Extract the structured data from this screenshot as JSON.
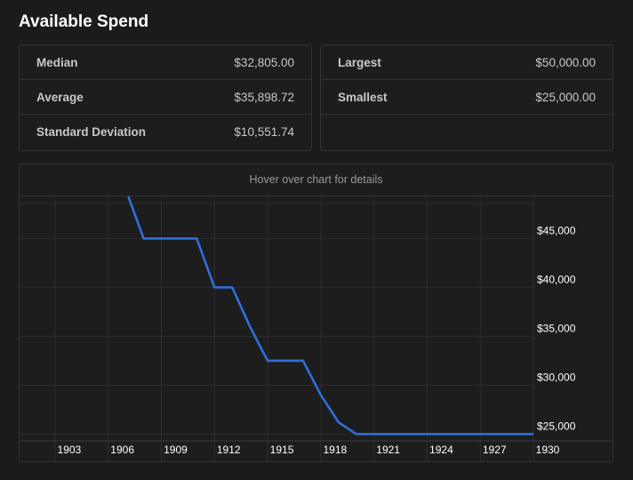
{
  "title": "Available Spend",
  "stats_left": [
    {
      "label": "Median",
      "value": "$32,805.00"
    },
    {
      "label": "Average",
      "value": "$35,898.72"
    },
    {
      "label": "Standard Deviation",
      "value": "$10,551.74"
    }
  ],
  "stats_right": [
    {
      "label": "Largest",
      "value": "$50,000.00"
    },
    {
      "label": "Smallest",
      "value": "$25,000.00"
    }
  ],
  "chart": {
    "hint": "Hover over chart for details"
  },
  "colors": {
    "line": "#2f6fdb",
    "grid": "#2e2e2e",
    "background": "#1b1b1b"
  },
  "chart_data": {
    "type": "line",
    "title": "",
    "xlabel": "",
    "ylabel": "",
    "x_ticks": [
      "1903",
      "1906",
      "1909",
      "1912",
      "1915",
      "1918",
      "1921",
      "1924",
      "1927",
      "1930"
    ],
    "y_ticks": [
      "$45,000",
      "$40,000",
      "$35,000",
      "$30,000",
      "$25,000"
    ],
    "y_tick_values": [
      45000,
      40000,
      35000,
      30000,
      25000
    ],
    "xlim": [
      1901,
      1930
    ],
    "ylim": [
      24300,
      49300
    ],
    "grid": true,
    "legend": "none",
    "series": [
      {
        "x": [
          1901,
          1907,
          1908,
          1911,
          1912,
          1913,
          1914,
          1915,
          1917,
          1918,
          1919,
          1920,
          1930
        ],
        "y": [
          50000,
          50000,
          45000,
          45000,
          40000,
          40000,
          36000,
          32500,
          32500,
          29000,
          26200,
          25000,
          25000
        ]
      }
    ]
  }
}
